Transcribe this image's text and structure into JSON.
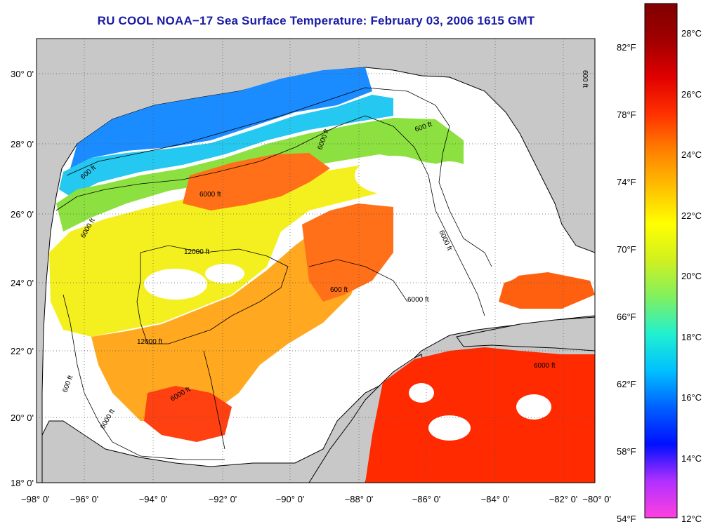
{
  "title": "RU COOL  NOAA−17  Sea Surface Temperature:  February 03, 2006 1615 GMT",
  "map": {
    "lat_labels": [
      "30° 0'",
      "28° 0'",
      "26° 0'",
      "24° 0'",
      "22° 0'",
      "20° 0'",
      "18° 0'"
    ],
    "lon_labels": [
      "−98° 0'",
      "−96° 0'",
      "−94° 0'",
      "−92° 0'",
      "−90° 0'",
      "−88° 0'",
      "−86° 0'",
      "−84° 0'",
      "−82° 0'",
      "−80° 0'"
    ],
    "right_f_labels": [
      "82°F",
      "78°F",
      "74°F",
      "70°F",
      "66°F",
      "62°F",
      "58°F",
      "54°F"
    ],
    "contour_labels": [
      "600 ft",
      "6000 ft",
      "12000 ft"
    ],
    "colors": {
      "land": "#c8c8c8",
      "cloud": "#ffffff",
      "coast": "#000000"
    }
  },
  "colorbar": {
    "c_labels": [
      "28°C",
      "26°C",
      "24°C",
      "22°C",
      "20°C",
      "18°C",
      "16°C",
      "14°C",
      "12°C"
    ],
    "colors": [
      "#ff40e0",
      "#b030ff",
      "#0010ff",
      "#0060ff",
      "#00c0ff",
      "#20f0d0",
      "#80f060",
      "#d0f020",
      "#ffff00",
      "#ffc000",
      "#ff8000",
      "#ff3000",
      "#e00000",
      "#a00000",
      "#800000"
    ]
  }
}
